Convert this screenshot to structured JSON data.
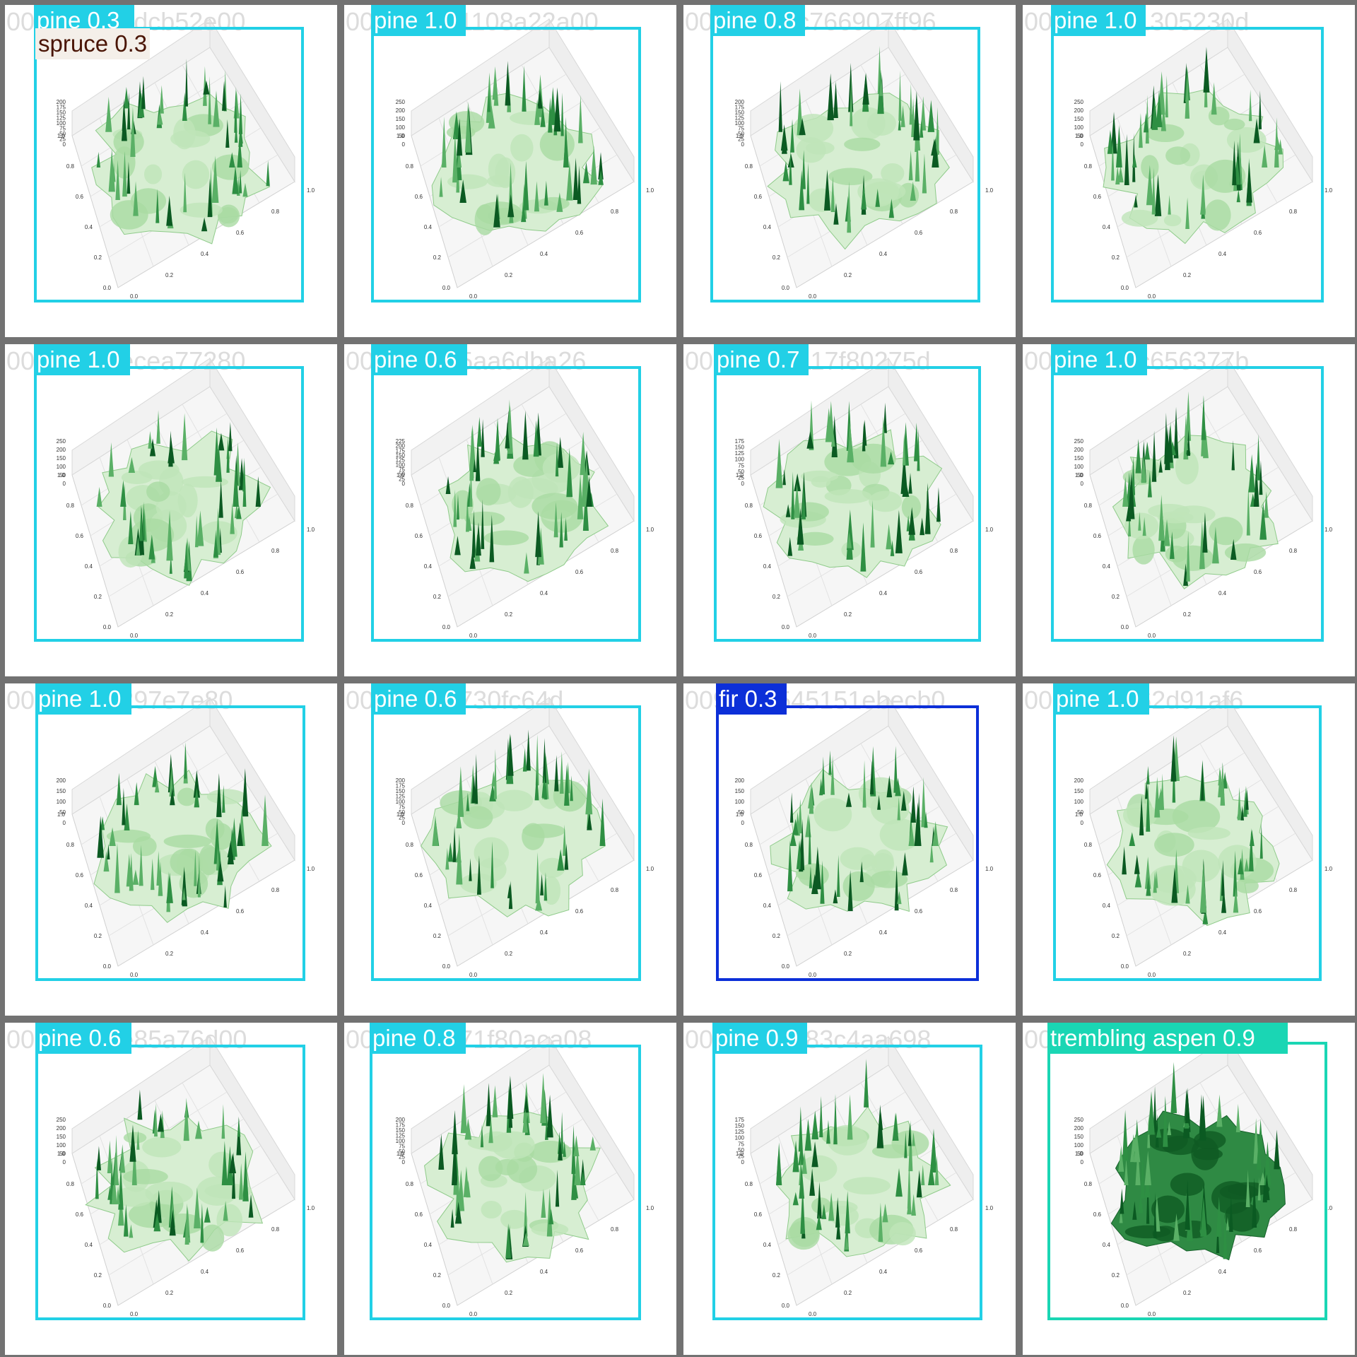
{
  "colors": {
    "pine": "#22d0e6",
    "fir": "#0c2fd8",
    "trembling aspen": "#1ad6b4",
    "spruce_text": "#4a1505",
    "spruce_bg": "#f4efe9",
    "frame": "#727272"
  },
  "axis_ticks": {
    "x": [
      "0.0",
      "0.2",
      "0.4",
      "0.6",
      "0.8",
      "1.0"
    ],
    "y": [
      "0.0",
      "0.2",
      "0.4",
      "0.6",
      "0.8",
      "1.0"
    ]
  },
  "tiles": [
    {
      "filename": "00e21d72edcb52e00",
      "z_ticks": [
        "200",
        "175",
        "150",
        "125",
        "100",
        "75",
        "50",
        "25",
        "0"
      ],
      "detections": [
        {
          "class": "pine",
          "score": "0.3"
        },
        {
          "class": "spruce",
          "score": "0.3"
        }
      ]
    },
    {
      "filename": "0068862b1108a22a00",
      "z_ticks": [
        "250",
        "200",
        "150",
        "100",
        "50",
        "0"
      ],
      "detections": [
        {
          "class": "pine",
          "score": "1.0"
        }
      ]
    },
    {
      "filename": "00ad30cbc766907ff96",
      "z_ticks": [
        "200",
        "175",
        "150",
        "125",
        "100",
        "75",
        "50",
        "25",
        "0"
      ],
      "detections": [
        {
          "class": "pine",
          "score": "0.8"
        }
      ]
    },
    {
      "filename": "00cd59a21305230d",
      "z_ticks": [
        "250",
        "200",
        "150",
        "100",
        "50",
        "0"
      ],
      "detections": [
        {
          "class": "pine",
          "score": "1.0"
        }
      ]
    },
    {
      "filename": "007e91e8ecea77280",
      "z_ticks": [
        "250",
        "200",
        "150",
        "100",
        "50",
        "0"
      ],
      "detections": [
        {
          "class": "pine",
          "score": "1.0"
        }
      ]
    },
    {
      "filename": "0036679b5aa6dba26",
      "z_ticks": [
        "225",
        "200",
        "175",
        "150",
        "125",
        "100",
        "75",
        "50",
        "25",
        "0"
      ],
      "detections": [
        {
          "class": "pine",
          "score": "0.6"
        }
      ]
    },
    {
      "filename": "0099253e117f80275d",
      "z_ticks": [
        "175",
        "150",
        "125",
        "100",
        "75",
        "50",
        "25",
        "0"
      ],
      "detections": [
        {
          "class": "pine",
          "score": "0.7"
        }
      ]
    },
    {
      "filename": "00a7f9b1fc656377b",
      "z_ticks": [
        "250",
        "200",
        "150",
        "100",
        "50",
        "0"
      ],
      "detections": [
        {
          "class": "pine",
          "score": "1.0"
        }
      ]
    },
    {
      "filename": "00db38ba297e7e80",
      "z_ticks": [
        "200",
        "150",
        "100",
        "50",
        "0"
      ],
      "detections": [
        {
          "class": "pine",
          "score": "1.0"
        }
      ]
    },
    {
      "filename": "00f8064ef730fc64d",
      "z_ticks": [
        "200",
        "175",
        "150",
        "125",
        "100",
        "75",
        "50",
        "25",
        "0"
      ],
      "detections": [
        {
          "class": "pine",
          "score": "0.6"
        }
      ]
    },
    {
      "filename": "0098f65545151ebecb0",
      "z_ticks": [
        "200",
        "150",
        "100",
        "50",
        "0"
      ],
      "detections": [
        {
          "class": "fir",
          "score": "0.3"
        }
      ]
    },
    {
      "filename": "0022b84e62d91af6",
      "z_ticks": [
        "200",
        "150",
        "100",
        "50",
        "0"
      ],
      "detections": [
        {
          "class": "pine",
          "score": "1.0"
        }
      ]
    },
    {
      "filename": "0021e29de85a76d00",
      "z_ticks": [
        "250",
        "200",
        "150",
        "100",
        "50",
        "0"
      ],
      "detections": [
        {
          "class": "pine",
          "score": "0.6"
        }
      ]
    },
    {
      "filename": "0023386571f80aca08",
      "z_ticks": [
        "200",
        "175",
        "150",
        "125",
        "100",
        "75",
        "50",
        "25",
        "0"
      ],
      "detections": [
        {
          "class": "pine",
          "score": "0.8"
        }
      ]
    },
    {
      "filename": "00a8f871e83c4aa698",
      "z_ticks": [
        "175",
        "150",
        "125",
        "100",
        "75",
        "50",
        "25",
        "0"
      ],
      "detections": [
        {
          "class": "pine",
          "score": "0.9"
        }
      ]
    },
    {
      "filename": "006d2ee",
      "z_ticks": [
        "250",
        "200",
        "150",
        "100",
        "50",
        "0"
      ],
      "detections": [
        {
          "class": "trembling aspen",
          "score": "0.9"
        }
      ]
    }
  ]
}
